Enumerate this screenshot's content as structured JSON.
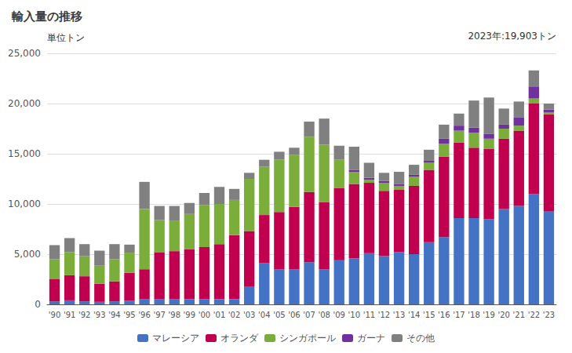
{
  "chart_data": {
    "type": "bar",
    "stacked": true,
    "title": "輸入量の推移",
    "ylabel": "単位トン",
    "annotation": "2023年:19,903トン",
    "categories": [
      "'90",
      "'91",
      "'92",
      "'93",
      "'94",
      "'95",
      "'96",
      "'97",
      "'98",
      "'99",
      "'00",
      "'01",
      "'02",
      "'03",
      "'04",
      "'05",
      "'06",
      "'07",
      "'08",
      "'09",
      "'10",
      "'11",
      "'12",
      "'13",
      "'14",
      "'15",
      "'16",
      "'17",
      "'18",
      "'19",
      "'20",
      "'21",
      "'22",
      "'23"
    ],
    "series": [
      {
        "name": "マレーシア",
        "color": "#4472C4",
        "values": [
          300,
          400,
          300,
          250,
          300,
          350,
          500,
          500,
          500,
          500,
          500,
          500,
          500,
          1800,
          4100,
          3500,
          3500,
          4200,
          3500,
          4400,
          4600,
          5100,
          4800,
          5200,
          5000,
          6200,
          6700,
          8600,
          8600,
          8500,
          9500,
          9800,
          11000,
          9300
        ]
      },
      {
        "name": "オランダ",
        "color": "#C0004E",
        "values": [
          2200,
          2500,
          2500,
          1800,
          2000,
          2800,
          3000,
          4700,
          4800,
          5000,
          5200,
          5500,
          6400,
          5500,
          4800,
          5700,
          6200,
          7000,
          6700,
          7200,
          7400,
          7000,
          6500,
          6200,
          6800,
          7200,
          8000,
          7500,
          7000,
          7000,
          7000,
          7500,
          9000,
          9600
        ]
      },
      {
        "name": "シンガポール",
        "color": "#7AAD3A",
        "values": [
          2000,
          2300,
          2000,
          1800,
          2200,
          2000,
          6000,
          3200,
          3000,
          3500,
          4200,
          4000,
          3500,
          5200,
          4800,
          5200,
          5200,
          5500,
          5700,
          2800,
          1200,
          300,
          800,
          400,
          900,
          700,
          1300,
          1200,
          1500,
          1000,
          1000,
          500,
          500,
          200
        ]
      },
      {
        "name": "ガーナ",
        "color": "#7030A0",
        "values": [
          0,
          0,
          0,
          0,
          0,
          0,
          0,
          0,
          0,
          0,
          0,
          0,
          0,
          0,
          0,
          0,
          0,
          0,
          0,
          0,
          200,
          200,
          200,
          200,
          200,
          200,
          500,
          500,
          500,
          500,
          400,
          800,
          1200,
          300
        ]
      },
      {
        "name": "その他",
        "color": "#808080",
        "values": [
          1400,
          1400,
          1200,
          1500,
          1500,
          800,
          2700,
          1400,
          1500,
          1100,
          1200,
          1700,
          1100,
          600,
          700,
          800,
          700,
          1500,
          2600,
          1400,
          2300,
          1500,
          800,
          1200,
          1000,
          1100,
          1400,
          1200,
          2700,
          3600,
          1600,
          1600,
          1600,
          600
        ]
      }
    ],
    "ylim": [
      0,
      25000
    ],
    "yticks": [
      0,
      {
        "value": 5000,
        "label": "5,000"
      },
      {
        "value": 10000,
        "label": "10,000"
      },
      {
        "value": 15000,
        "label": "15,000"
      },
      {
        "value": 20000,
        "label": "20,000"
      },
      {
        "value": 25000,
        "label": "25,000"
      }
    ],
    "grid": true,
    "legend": "bottom"
  }
}
